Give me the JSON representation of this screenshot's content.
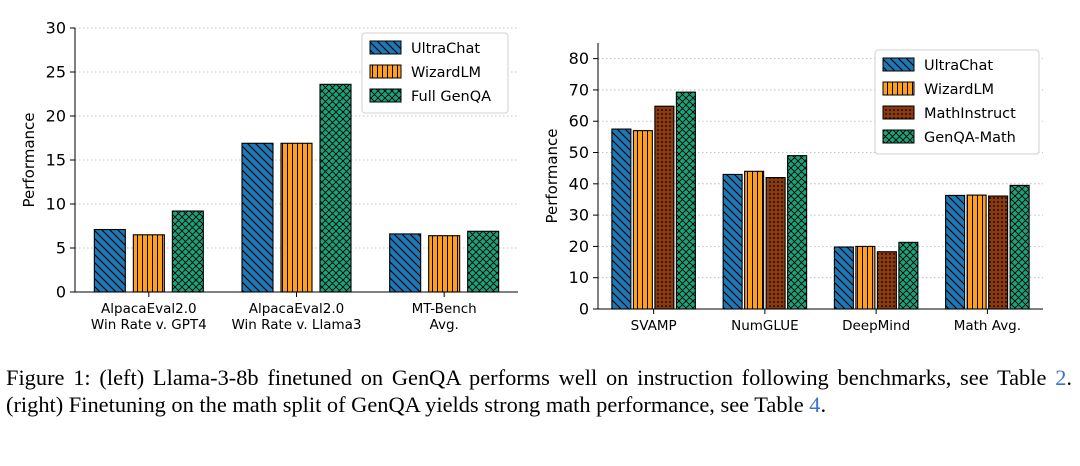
{
  "chart_data": [
    {
      "type": "bar",
      "title": "",
      "xlabel": "",
      "ylabel": "Performance",
      "ylim": [
        0,
        30
      ],
      "yticks": [
        0,
        5,
        10,
        15,
        20,
        25,
        30
      ],
      "grid": "horizontal dotted",
      "legend_position": "top-right",
      "categories": [
        [
          "AlpacaEval2.0",
          "Win Rate v. GPT4"
        ],
        [
          "AlpacaEval2.0",
          "Win Rate v. Llama3"
        ],
        [
          "MT-Bench",
          "Avg."
        ]
      ],
      "series": [
        {
          "name": "UltraChat",
          "color": "#1f77b4",
          "hatch": "diagonal",
          "values": [
            7.1,
            16.9,
            6.6
          ]
        },
        {
          "name": "WizardLM",
          "color": "#ff9f1c",
          "hatch": "vertical",
          "values": [
            6.5,
            16.9,
            6.4
          ]
        },
        {
          "name": "Full GenQA",
          "color": "#1aa37a",
          "hatch": "cross",
          "values": [
            9.2,
            23.6,
            6.9
          ]
        }
      ]
    },
    {
      "type": "bar",
      "title": "",
      "xlabel": "",
      "ylabel": "Performance",
      "ylim": [
        0,
        85
      ],
      "yticks": [
        0,
        10,
        20,
        30,
        40,
        50,
        60,
        70,
        80
      ],
      "grid": "horizontal dotted",
      "legend_position": "top-right",
      "categories": [
        [
          "SVAMP"
        ],
        [
          "NumGLUE"
        ],
        [
          "DeepMind"
        ],
        [
          "Math Avg."
        ]
      ],
      "series": [
        {
          "name": "UltraChat",
          "color": "#1f77b4",
          "hatch": "diagonal",
          "values": [
            57.5,
            43.0,
            19.8,
            36.3
          ]
        },
        {
          "name": "WizardLM",
          "color": "#ff9f1c",
          "hatch": "vertical",
          "values": [
            57.0,
            44.0,
            20.0,
            36.4
          ]
        },
        {
          "name": "MathInstruct",
          "color": "#8b3a0e",
          "hatch": "dots",
          "values": [
            64.8,
            42.0,
            18.3,
            36.1
          ]
        },
        {
          "name": "GenQA-Math",
          "color": "#1aa37a",
          "hatch": "cross",
          "values": [
            69.3,
            49.0,
            21.3,
            39.5
          ]
        }
      ]
    }
  ],
  "caption": {
    "part1": "Figure 1: (left) Llama-3-8b finetuned on GenQA performs well on instruction following benchmarks, see Table ",
    "ref1": "2",
    "part2": ". (right) Finetuning on the math split of GenQA yields strong math performance, see Table ",
    "ref2": "4",
    "part3": "."
  }
}
